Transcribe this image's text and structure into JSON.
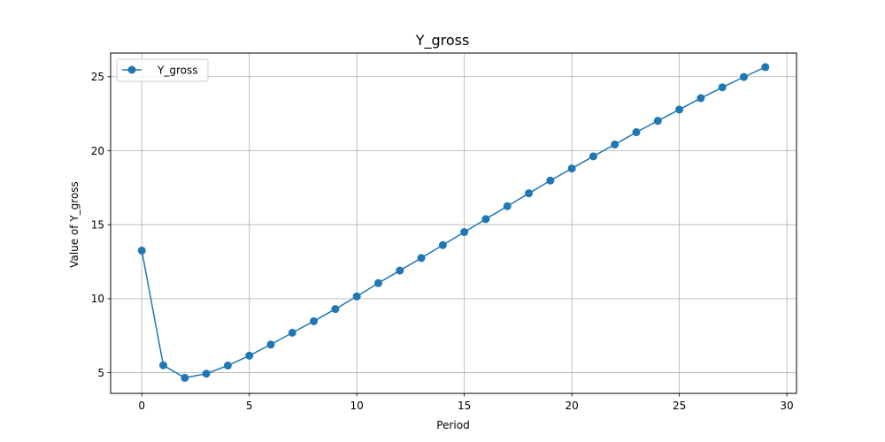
{
  "chart_data": {
    "type": "line",
    "title": "Y_gross",
    "xlabel": "Period",
    "ylabel": "Value of Y_gross",
    "xlim": [
      -1.45,
      30.45
    ],
    "ylim": [
      3.6,
      26.6
    ],
    "xticks": [
      0,
      5,
      10,
      15,
      20,
      25,
      30
    ],
    "yticks": [
      5,
      10,
      15,
      20,
      25
    ],
    "grid": true,
    "legend_position": "top-left",
    "series": [
      {
        "name": "Y_gross",
        "color": "#1f77b4",
        "marker": "circle",
        "x": [
          0,
          1,
          2,
          3,
          4,
          5,
          6,
          7,
          8,
          9,
          10,
          11,
          12,
          13,
          14,
          15,
          16,
          17,
          18,
          19,
          20,
          21,
          22,
          23,
          24,
          25,
          26,
          27,
          28,
          29
        ],
        "y": [
          13.25,
          5.5,
          4.65,
          4.93,
          5.48,
          6.15,
          6.9,
          7.7,
          8.48,
          9.3,
          10.15,
          11.05,
          11.9,
          12.75,
          13.62,
          14.5,
          15.38,
          16.25,
          17.12,
          17.98,
          18.8,
          19.62,
          20.42,
          21.25,
          22.02,
          22.78,
          23.55,
          24.28,
          24.98,
          25.65
        ]
      }
    ]
  }
}
